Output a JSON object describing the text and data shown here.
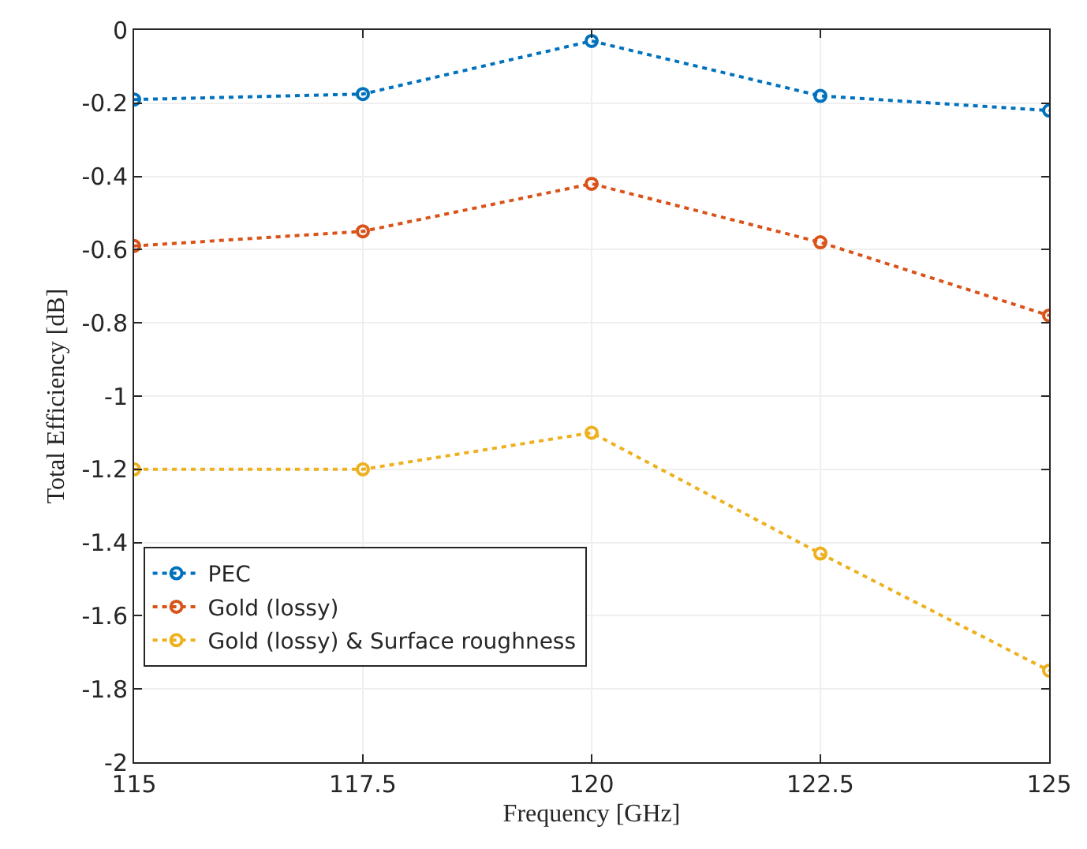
{
  "chart_data": {
    "type": "line",
    "xlabel": "Frequency [GHz]",
    "ylabel": "Total Efficiency [dB]",
    "x": [
      115,
      117.5,
      120,
      122.5,
      125
    ],
    "series": [
      {
        "name": "PEC",
        "color": "#0072bd",
        "values": [
          -0.19,
          -0.175,
          -0.03,
          -0.18,
          -0.22
        ]
      },
      {
        "name": "Gold (lossy)",
        "color": "#d95319",
        "values": [
          -0.59,
          -0.55,
          -0.42,
          -0.58,
          -0.78
        ]
      },
      {
        "name": "Gold (lossy) & Surface roughness",
        "color": "#edb120",
        "values": [
          -1.2,
          -1.2,
          -1.1,
          -1.43,
          -1.75
        ]
      }
    ],
    "xlim": [
      115,
      125
    ],
    "xticks": [
      115,
      117.5,
      120,
      122.5,
      125
    ],
    "ylim": [
      -2,
      0
    ],
    "yticks": [
      -2,
      -1.8,
      -1.6,
      -1.4,
      -1.2,
      -1,
      -0.8,
      -0.6,
      -0.4,
      -0.2,
      0
    ],
    "grid": true,
    "legend": "bottom left",
    "marker": "circle",
    "line_style": "dotted"
  }
}
